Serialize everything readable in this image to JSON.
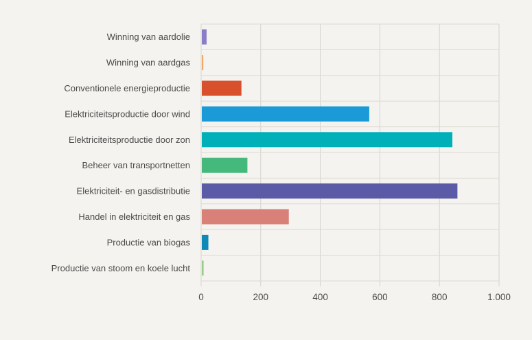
{
  "chart_data": {
    "type": "bar",
    "orientation": "horizontal",
    "categories": [
      "Winning van aardolie",
      "Winning van aardgas",
      "Conventionele energieproductie",
      "Elektriciteitsproductie door wind",
      "Elektriciteitsproductie door zon",
      "Beheer van transportnetten",
      "Elektriciteit- en gasdistributie",
      "Handel in elektriciteit en gas",
      "Productie van biogas",
      "Productie van stoom en koele lucht"
    ],
    "values": [
      16,
      5,
      133,
      562,
      841,
      153,
      858,
      292,
      22,
      6
    ],
    "colors": [
      "#8b7cc8",
      "#f0a868",
      "#d9512c",
      "#1a9bd7",
      "#00b0b9",
      "#45b97c",
      "#5a5aa6",
      "#d98078",
      "#0f8ab8",
      "#9ccc8c"
    ],
    "xlim": [
      0,
      1000
    ],
    "xticks": [
      0,
      200,
      400,
      600,
      800,
      1000
    ],
    "xtick_labels": [
      "0",
      "200",
      "400",
      "600",
      "800",
      "1.000"
    ],
    "grid": "vertical",
    "title": "",
    "xlabel": "",
    "ylabel": ""
  }
}
